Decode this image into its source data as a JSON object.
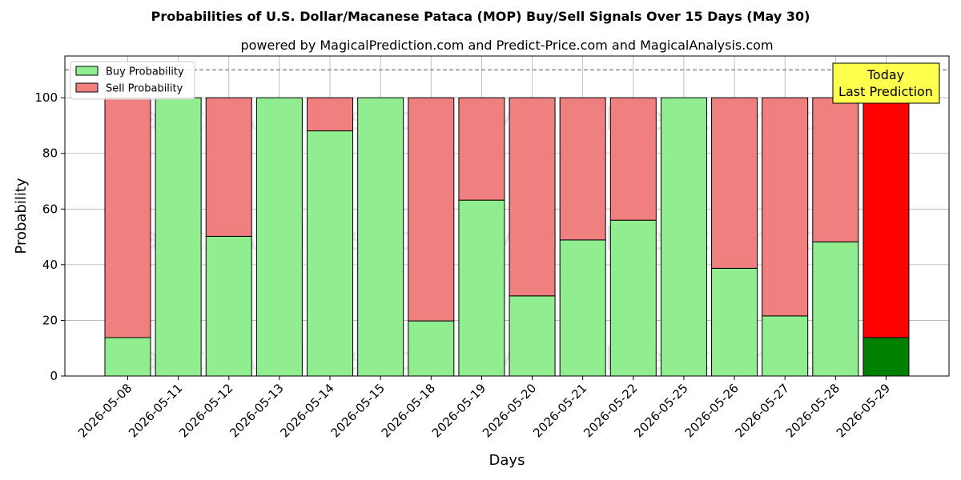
{
  "chart_data": {
    "type": "bar",
    "stacked": true,
    "title": "Probabilities of U.S. Dollar/Macanese Pataca (MOP) Buy/Sell Signals Over 15 Days (May 30)",
    "subtitle": "powered by MagicalPrediction.com and Predict-Price.com and MagicalAnalysis.com",
    "xlabel": "Days",
    "ylabel": "Probability",
    "ylim": [
      0,
      115
    ],
    "yticks": [
      0,
      20,
      40,
      60,
      80,
      100
    ],
    "reference_line": 110,
    "grid": true,
    "legend_position": "top-left",
    "categories": [
      "2026-05-08",
      "2026-05-11",
      "2026-05-12",
      "2026-05-13",
      "2026-05-14",
      "2026-05-15",
      "2026-05-18",
      "2026-05-19",
      "2026-05-20",
      "2026-05-21",
      "2026-05-22",
      "2026-05-25",
      "2026-05-26",
      "2026-05-27",
      "2026-05-28",
      "2026-05-29"
    ],
    "series": [
      {
        "name": "Buy Probability",
        "color": "#90ee90",
        "highlight_color": "#008000",
        "values": [
          13.8,
          100,
          50.2,
          100,
          88.1,
          100,
          19.8,
          63.2,
          28.8,
          48.9,
          56.0,
          100,
          38.7,
          21.6,
          48.2,
          13.8
        ]
      },
      {
        "name": "Sell Probability",
        "color": "#f08080",
        "highlight_color": "#ff0000",
        "values": [
          86.2,
          0,
          49.8,
          0,
          11.9,
          0,
          80.2,
          36.8,
          71.2,
          51.1,
          44.0,
          0,
          61.3,
          78.4,
          51.8,
          86.2
        ]
      }
    ],
    "highlight_index": 15,
    "annotation": {
      "line1": "Today",
      "line2": "Last Prediction",
      "background": "#ffff4d"
    },
    "watermarks": [
      "MagicalAnalysis.com",
      "MagicalPrediction.com"
    ]
  }
}
